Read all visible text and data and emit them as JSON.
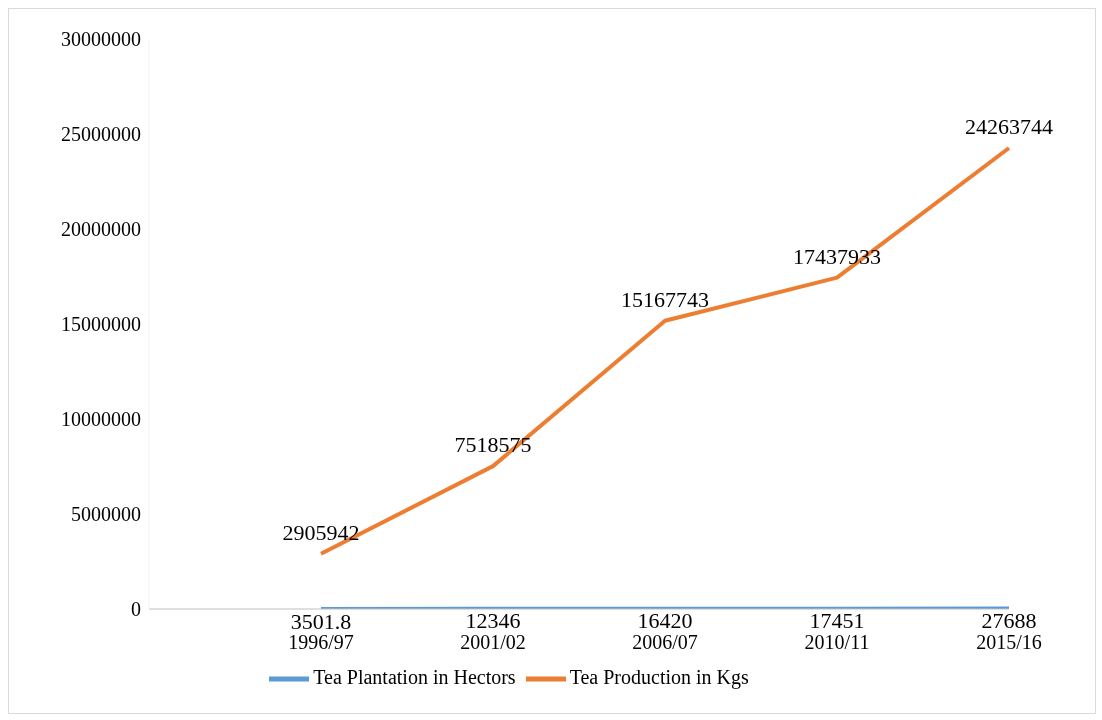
{
  "chart_data": {
    "type": "line",
    "categories": [
      null,
      "1996/97",
      "2001/02",
      "2006/07",
      "2010/11",
      "2015/16"
    ],
    "series": [
      {
        "name": "Tea Plantation in Hectors",
        "color": "#5b9bd5",
        "values": [
          null,
          3501.8,
          12346,
          16420,
          17451,
          27688
        ]
      },
      {
        "name": "Tea Production in Kgs",
        "color": "#ed7d31",
        "values": [
          null,
          2905942,
          7518575,
          15167743,
          17437933,
          24263744
        ]
      }
    ],
    "ylim": [
      0,
      30000000
    ],
    "yticks": [
      0,
      5000000,
      10000000,
      15000000,
      20000000,
      25000000,
      30000000
    ],
    "data_labels": true,
    "legend": "bottom",
    "grid": false,
    "marker": "none",
    "line_style": "solid"
  }
}
